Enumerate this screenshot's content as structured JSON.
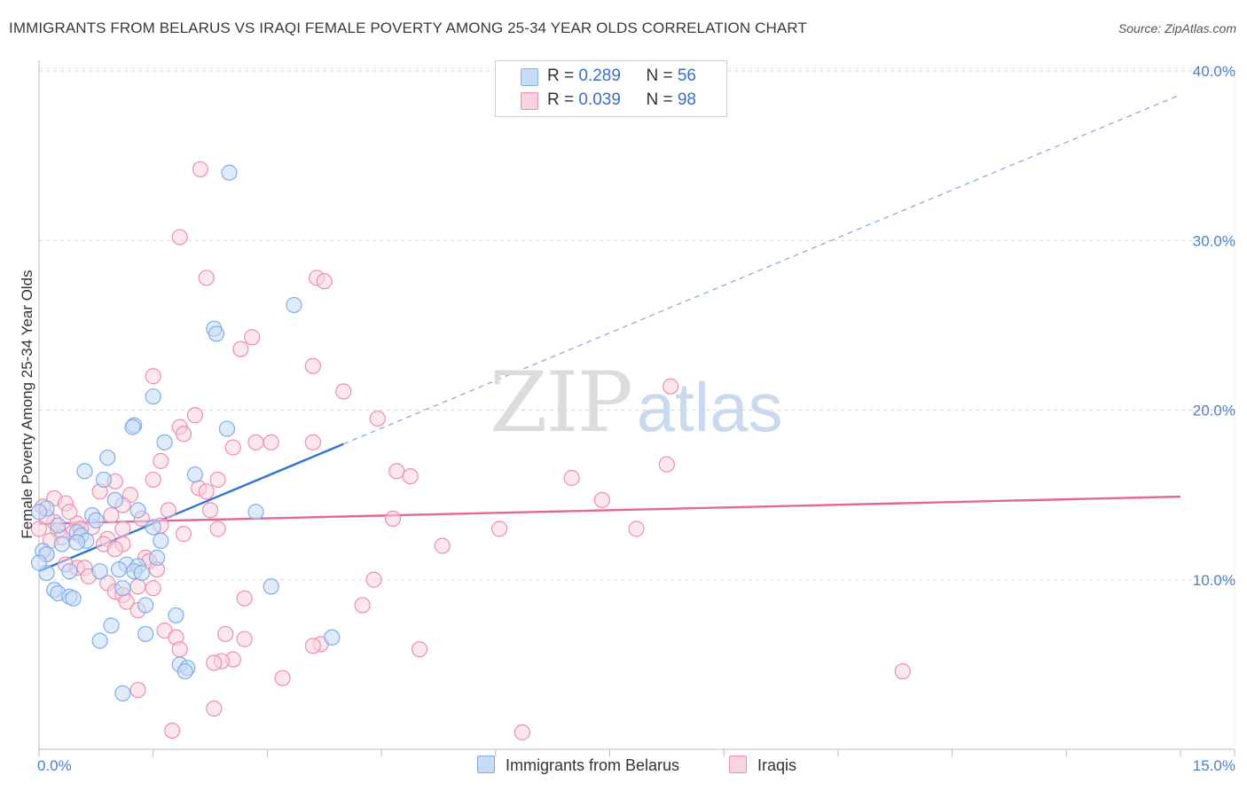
{
  "header": {
    "title": "IMMIGRANTS FROM BELARUS VS IRAQI FEMALE POVERTY AMONG 25-34 YEAR OLDS CORRELATION CHART",
    "source": "Source: ZipAtlas.com"
  },
  "watermark": {
    "zip": "ZIP",
    "atlas": "atlas"
  },
  "legend": {
    "rows": [
      {
        "r_label": "R = ",
        "r_value": "0.289",
        "n_label": "N = ",
        "n_value": "56",
        "color": "#a8c8f0"
      },
      {
        "r_label": "R = ",
        "r_value": "0.039",
        "n_label": "N = ",
        "n_value": "98",
        "color": "#f5b8cc"
      }
    ]
  },
  "bottom_legend": {
    "belarus": "Immigrants from Belarus",
    "iraqis": "Iraqis"
  },
  "chart_data": {
    "type": "scatter",
    "title": "IMMIGRANTS FROM BELARUS VS IRAQI FEMALE POVERTY AMONG 25-34 YEAR OLDS CORRELATION CHART",
    "xlabel": "",
    "ylabel": "Female Poverty Among 25-34 Year Olds",
    "xlim": [
      0,
      15
    ],
    "ylim": [
      0,
      40
    ],
    "x_tick_labels": [
      "0.0%",
      "15.0%"
    ],
    "y_ticks": [
      10,
      20,
      30,
      40
    ],
    "y_tick_labels": [
      "10.0%",
      "20.0%",
      "30.0%",
      "40.0%"
    ],
    "grid": true,
    "legend_position": "top-center",
    "series": [
      {
        "name": "Immigrants from Belarus",
        "color": "#7fadea",
        "fill": "#c6dbf6",
        "trend": {
          "x": [
            0.0,
            4.0
          ],
          "y": [
            10.5,
            18.0
          ],
          "extended_to": [
            15.0,
            38.6
          ],
          "color": "#2f72d6"
        },
        "points": [
          [
            2.5,
            34.0
          ],
          [
            3.35,
            26.2
          ],
          [
            2.3,
            24.8
          ],
          [
            2.33,
            24.5
          ],
          [
            1.5,
            20.8
          ],
          [
            1.25,
            19.1
          ],
          [
            1.23,
            19.0
          ],
          [
            2.47,
            18.9
          ],
          [
            1.65,
            18.1
          ],
          [
            0.9,
            17.2
          ],
          [
            0.6,
            16.4
          ],
          [
            2.05,
            16.2
          ],
          [
            0.85,
            15.9
          ],
          [
            1.0,
            14.7
          ],
          [
            0.1,
            14.2
          ],
          [
            1.3,
            14.1
          ],
          [
            2.85,
            14.0
          ],
          [
            0.7,
            13.8
          ],
          [
            0.75,
            13.5
          ],
          [
            0.25,
            13.2
          ],
          [
            1.5,
            13.1
          ],
          [
            0.5,
            12.8
          ],
          [
            0.55,
            12.6
          ],
          [
            0.62,
            12.3
          ],
          [
            0.5,
            12.2
          ],
          [
            1.6,
            12.3
          ],
          [
            0.3,
            12.1
          ],
          [
            0.05,
            11.7
          ],
          [
            0.1,
            11.5
          ],
          [
            1.55,
            11.3
          ],
          [
            1.15,
            10.9
          ],
          [
            1.3,
            10.8
          ],
          [
            0.4,
            10.5
          ],
          [
            0.8,
            10.5
          ],
          [
            1.05,
            10.6
          ],
          [
            1.25,
            10.5
          ],
          [
            1.35,
            10.4
          ],
          [
            0.1,
            10.4
          ],
          [
            3.05,
            9.6
          ],
          [
            1.1,
            9.5
          ],
          [
            0.2,
            9.4
          ],
          [
            0.25,
            9.2
          ],
          [
            0.4,
            9.0
          ],
          [
            0.45,
            8.9
          ],
          [
            1.4,
            8.5
          ],
          [
            1.8,
            7.9
          ],
          [
            0.95,
            7.3
          ],
          [
            1.4,
            6.8
          ],
          [
            3.85,
            6.6
          ],
          [
            0.8,
            6.4
          ],
          [
            1.85,
            5.0
          ],
          [
            1.95,
            4.8
          ],
          [
            1.92,
            4.6
          ],
          [
            1.1,
            3.3
          ],
          [
            0.0,
            14.0
          ],
          [
            0.0,
            11.0
          ]
        ]
      },
      {
        "name": "Iraqis",
        "color": "#ee8eaf",
        "fill": "#f9d3df",
        "trend": {
          "x": [
            0.0,
            15.0
          ],
          "y": [
            13.3,
            14.9
          ],
          "color": "#e0679a"
        },
        "points": [
          [
            2.12,
            34.2
          ],
          [
            1.85,
            30.2
          ],
          [
            2.2,
            27.8
          ],
          [
            3.65,
            27.8
          ],
          [
            3.75,
            27.6
          ],
          [
            2.8,
            24.3
          ],
          [
            2.65,
            23.6
          ],
          [
            3.6,
            22.6
          ],
          [
            1.5,
            22.0
          ],
          [
            4.0,
            21.1
          ],
          [
            8.3,
            21.4
          ],
          [
            4.45,
            19.5
          ],
          [
            2.05,
            19.7
          ],
          [
            1.85,
            19.0
          ],
          [
            1.9,
            18.6
          ],
          [
            2.85,
            18.1
          ],
          [
            3.05,
            18.1
          ],
          [
            3.6,
            18.1
          ],
          [
            2.55,
            17.8
          ],
          [
            1.6,
            17.0
          ],
          [
            8.25,
            16.8
          ],
          [
            4.7,
            16.4
          ],
          [
            4.88,
            16.1
          ],
          [
            7.0,
            16.0
          ],
          [
            2.35,
            15.9
          ],
          [
            1.5,
            15.9
          ],
          [
            1.0,
            15.8
          ],
          [
            2.1,
            15.4
          ],
          [
            2.2,
            15.2
          ],
          [
            0.8,
            15.2
          ],
          [
            1.2,
            15.0
          ],
          [
            0.2,
            14.8
          ],
          [
            7.4,
            14.7
          ],
          [
            0.35,
            14.5
          ],
          [
            1.1,
            14.4
          ],
          [
            0.05,
            14.3
          ],
          [
            1.7,
            14.1
          ],
          [
            2.25,
            14.1
          ],
          [
            0.95,
            13.8
          ],
          [
            1.35,
            13.6
          ],
          [
            4.65,
            13.6
          ],
          [
            0.2,
            13.4
          ],
          [
            0.5,
            13.3
          ],
          [
            1.6,
            13.2
          ],
          [
            0.7,
            13.1
          ],
          [
            1.1,
            13.0
          ],
          [
            2.35,
            13.0
          ],
          [
            6.05,
            13.0
          ],
          [
            7.85,
            13.0
          ],
          [
            0.25,
            12.9
          ],
          [
            0.45,
            12.8
          ],
          [
            1.9,
            12.7
          ],
          [
            0.3,
            12.5
          ],
          [
            0.9,
            12.4
          ],
          [
            0.85,
            12.1
          ],
          [
            1.1,
            12.1
          ],
          [
            5.3,
            12.0
          ],
          [
            1.0,
            11.8
          ],
          [
            0.1,
            11.5
          ],
          [
            1.4,
            11.3
          ],
          [
            1.45,
            11.1
          ],
          [
            0.35,
            10.9
          ],
          [
            0.5,
            10.7
          ],
          [
            0.6,
            10.7
          ],
          [
            1.55,
            10.6
          ],
          [
            0.65,
            10.2
          ],
          [
            4.4,
            10.0
          ],
          [
            0.9,
            9.8
          ],
          [
            1.3,
            9.6
          ],
          [
            1.5,
            9.5
          ],
          [
            1.0,
            9.3
          ],
          [
            1.1,
            9.1
          ],
          [
            2.7,
            8.9
          ],
          [
            1.15,
            8.7
          ],
          [
            4.25,
            8.5
          ],
          [
            1.3,
            8.2
          ],
          [
            1.65,
            7.0
          ],
          [
            1.8,
            6.6
          ],
          [
            2.45,
            6.8
          ],
          [
            2.7,
            6.5
          ],
          [
            3.7,
            6.2
          ],
          [
            3.6,
            6.1
          ],
          [
            1.85,
            5.9
          ],
          [
            5.0,
            5.9
          ],
          [
            2.55,
            5.3
          ],
          [
            2.4,
            5.2
          ],
          [
            2.3,
            5.1
          ],
          [
            11.35,
            4.6
          ],
          [
            3.2,
            4.2
          ],
          [
            1.3,
            3.5
          ],
          [
            2.3,
            2.4
          ],
          [
            1.75,
            1.1
          ],
          [
            6.35,
            1.0
          ],
          [
            0.1,
            13.7
          ],
          [
            0.15,
            12.3
          ],
          [
            0.0,
            13.0
          ],
          [
            0.4,
            14.0
          ],
          [
            0.55,
            13.0
          ]
        ]
      }
    ]
  }
}
